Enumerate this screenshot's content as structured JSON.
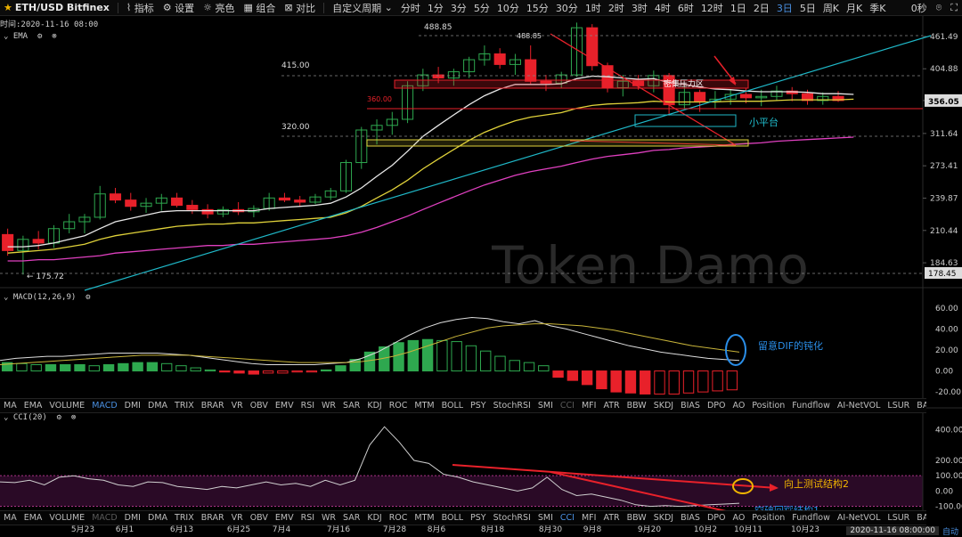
{
  "toolbar": {
    "symbol": "ETH/USD Bitfinex",
    "tools": [
      "指标",
      "设置",
      "亮色",
      "组合",
      "对比"
    ],
    "period_menu": "自定义周期",
    "periods": [
      "分时",
      "1分",
      "3分",
      "5分",
      "10分",
      "15分",
      "30分",
      "1时",
      "2时",
      "3时",
      "4时",
      "6时",
      "12时",
      "1日",
      "2日",
      "3日",
      "5日",
      "周K",
      "月K",
      "季K"
    ],
    "active_period": "3日",
    "countdown": "0秒"
  },
  "time_label": "时间:2020-11-16 08:00",
  "main": {
    "indicator_label": "EMA",
    "y_ticks": [
      "461.49",
      "404.88",
      "356.05",
      "311.64",
      "273.41",
      "239.87",
      "210.44",
      "184.63",
      "178.45"
    ],
    "current_price": "356.05",
    "watermark": "Token Damo",
    "annotations": {
      "high_label": "488.85",
      "high_label2": "488.85",
      "level_415": "415.00",
      "level_360": "360.00",
      "level_320": "320.00",
      "low_label": "← 175.72",
      "pressure_zone": "密集压力区",
      "small_platform": "小平台"
    }
  },
  "macd": {
    "label": "MACD(12,26,9)",
    "y_ticks": [
      "60.00",
      "40.00",
      "20.00",
      "0.00",
      "-20.00"
    ],
    "note": "留意DIF的钝化"
  },
  "indicators": [
    "MA",
    "EMA",
    "VOLUME",
    "MACD",
    "DMI",
    "DMA",
    "TRIX",
    "BRAR",
    "VR",
    "OBV",
    "EMV",
    "RSI",
    "WR",
    "SAR",
    "KDJ",
    "ROC",
    "MTM",
    "BOLL",
    "PSY",
    "StochRSI",
    "SMI",
    "CCI",
    "MFI",
    "ATR",
    "BBW",
    "SKDJ",
    "BIAS",
    "DPO",
    "AO",
    "Position",
    "Fundflow",
    "AI-NetVOL",
    "LSUR",
    "BASIS",
    "TVolume",
    "FTBS",
    "TTSI",
    "TTMU",
    "AI-BSI"
  ],
  "indicators_active_row1": "MACD",
  "indicators_active_row2": "CCI",
  "cci": {
    "label": "CCI(20)",
    "y_ticks": [
      "400.00",
      "200.00",
      "100.00",
      "0.00",
      "-100.00"
    ],
    "note_up": "向上测试结构2",
    "note_down": "空破回踩结构1"
  },
  "x_ticks": [
    "5月23",
    "6月1",
    "6月13",
    "6月25",
    "7月4",
    "7月16",
    "7月28",
    "8月6",
    "8月18",
    "8月30",
    "9月8",
    "9月20",
    "10月2",
    "10月11",
    "10月23"
  ],
  "status": {
    "datetime": "2020-11-16 08:00:00",
    "mode": "自动"
  },
  "colors": {
    "up": "#e8212a",
    "down": "#2ea84f",
    "ema_fast": "#e8e8e8",
    "ema_mid": "#e0d23a",
    "ema_slow": "#e040c0",
    "trend": "#1fb8c8",
    "accent": "#4a90e2",
    "cci_zone": "#2a0a26"
  },
  "chart_data": [
    {
      "type": "candlestick",
      "title": "ETH/USD Bitfinex 3日",
      "x": [
        "5月17",
        "5月20",
        "5月23",
        "5月26",
        "5月29",
        "6月1",
        "6月4",
        "6月7",
        "6月10",
        "6月13",
        "6月16",
        "6月19",
        "6月22",
        "6月25",
        "6月28",
        "7月1",
        "7月4",
        "7月7",
        "7月10",
        "7月13",
        "7月16",
        "7月19",
        "7月22",
        "7月25",
        "7月28",
        "7月31",
        "8月3",
        "8月6",
        "8月9",
        "8月12",
        "8月15",
        "8月18",
        "8月21",
        "8月24",
        "8月27",
        "8月30",
        "9月2",
        "9月5",
        "9月8",
        "9月11",
        "9月14",
        "9月17",
        "9月20",
        "9月23",
        "9月26",
        "9月29",
        "10月2",
        "10月5",
        "10月8",
        "10月11",
        "10月14",
        "10月17",
        "10月20",
        "10月23",
        "10月26",
        "10月29",
        "11月1",
        "11月4",
        "11月7",
        "11月10",
        "11月13",
        "11月16"
      ],
      "ohlc": [
        [
          207,
          212,
          190,
          194
        ],
        [
          194,
          206,
          176,
          203
        ],
        [
          203,
          210,
          195,
          200
        ],
        [
          200,
          215,
          196,
          212
        ],
        [
          212,
          225,
          208,
          218
        ],
        [
          218,
          225,
          208,
          222
        ],
        [
          222,
          252,
          220,
          244
        ],
        [
          244,
          250,
          235,
          238
        ],
        [
          238,
          245,
          228,
          232
        ],
        [
          232,
          240,
          226,
          235
        ],
        [
          235,
          244,
          228,
          240
        ],
        [
          240,
          245,
          231,
          233
        ],
        [
          233,
          238,
          225,
          229
        ],
        [
          229,
          234,
          221,
          225
        ],
        [
          225,
          232,
          222,
          229
        ],
        [
          229,
          236,
          224,
          227
        ],
        [
          227,
          233,
          222,
          230
        ],
        [
          230,
          245,
          228,
          240
        ],
        [
          240,
          245,
          236,
          238
        ],
        [
          238,
          242,
          232,
          236
        ],
        [
          236,
          244,
          234,
          241
        ],
        [
          241,
          250,
          238,
          247
        ],
        [
          247,
          280,
          245,
          277
        ],
        [
          277,
          320,
          270,
          316
        ],
        [
          316,
          330,
          298,
          322
        ],
        [
          322,
          340,
          310,
          330
        ],
        [
          330,
          385,
          325,
          378
        ],
        [
          378,
          405,
          370,
          395
        ],
        [
          395,
          408,
          382,
          390
        ],
        [
          390,
          405,
          378,
          400
        ],
        [
          400,
          425,
          390,
          420
        ],
        [
          420,
          445,
          410,
          430
        ],
        [
          430,
          440,
          405,
          412
        ],
        [
          412,
          430,
          395,
          420
        ],
        [
          420,
          445,
          380,
          385
        ],
        [
          385,
          395,
          370,
          382
        ],
        [
          382,
          400,
          375,
          395
        ],
        [
          395,
          488,
          392,
          478
        ],
        [
          478,
          485,
          402,
          410
        ],
        [
          410,
          415,
          368,
          375
        ],
        [
          375,
          395,
          362,
          385
        ],
        [
          385,
          395,
          372,
          378
        ],
        [
          378,
          402,
          368,
          394
        ],
        [
          394,
          398,
          335,
          350
        ],
        [
          350,
          378,
          345,
          368
        ],
        [
          368,
          372,
          340,
          355
        ],
        [
          355,
          370,
          345,
          358
        ],
        [
          358,
          372,
          350,
          365
        ],
        [
          365,
          374,
          352,
          360
        ],
        [
          360,
          372,
          348,
          362
        ],
        [
          362,
          378,
          356,
          370
        ],
        [
          370,
          376,
          355,
          366
        ],
        [
          366,
          372,
          350,
          356
        ],
        [
          356,
          368,
          350,
          362
        ],
        [
          362,
          370,
          354,
          356
        ]
      ],
      "ylim": [
        170,
        480
      ],
      "y_scale": "log",
      "ema_fast": [
        197,
        197,
        198,
        200,
        203,
        206,
        212,
        218,
        221,
        224,
        227,
        228,
        228,
        228,
        228,
        228,
        228,
        230,
        231,
        232,
        233,
        235,
        241,
        250,
        262,
        274,
        290,
        308,
        322,
        336,
        350,
        363,
        373,
        380,
        380,
        380,
        381,
        389,
        393,
        392,
        390,
        388,
        389,
        383,
        380,
        376,
        373,
        372,
        370,
        369,
        369,
        369,
        368,
        366,
        366,
        365
      ],
      "ema_mid": [
        192,
        193,
        194,
        195,
        197,
        199,
        203,
        206,
        208,
        210,
        212,
        214,
        215,
        216,
        216,
        217,
        217,
        218,
        219,
        220,
        221,
        222,
        226,
        232,
        240,
        248,
        258,
        270,
        281,
        292,
        303,
        313,
        321,
        328,
        333,
        336,
        339,
        345,
        349,
        351,
        352,
        353,
        355,
        354,
        354,
        354,
        354,
        355,
        355,
        355,
        356,
        357,
        357,
        357,
        357,
        358
      ],
      "ema_slow": [
        186,
        186,
        187,
        187,
        188,
        189,
        190,
        192,
        193,
        194,
        195,
        196,
        197,
        198,
        198,
        199,
        199,
        200,
        201,
        202,
        203,
        204,
        206,
        209,
        213,
        218,
        223,
        229,
        235,
        241,
        247,
        253,
        258,
        263,
        267,
        270,
        273,
        277,
        281,
        284,
        286,
        288,
        291,
        292,
        294,
        295,
        296,
        298,
        299,
        300,
        302,
        303,
        304,
        305,
        306,
        307
      ]
    },
    {
      "type": "bar",
      "title": "MACD(12,26,9)",
      "ylim": [
        -25,
        65
      ],
      "hist": [
        8,
        7,
        6,
        6,
        6,
        6,
        5,
        6,
        7,
        8,
        8,
        7,
        5,
        3,
        1,
        -1,
        -2,
        -3,
        -2,
        -2,
        -1,
        -1,
        1,
        5,
        11,
        18,
        23,
        27,
        29,
        30,
        29,
        28,
        24,
        19,
        14,
        10,
        8,
        5,
        -6,
        -9,
        -13,
        -17,
        -20,
        -21,
        -22,
        -22,
        -22,
        -21,
        -20,
        -19,
        -18
      ],
      "dif": [
        10,
        12,
        13,
        14,
        14,
        15,
        16,
        17,
        17,
        17,
        17,
        16,
        15,
        13,
        11,
        9,
        7,
        6,
        6,
        6,
        6,
        7,
        8,
        12,
        18,
        26,
        34,
        41,
        46,
        49,
        51,
        50,
        47,
        45,
        48,
        43,
        40,
        36,
        32,
        28,
        24,
        21,
        18,
        16,
        14,
        12,
        11,
        10
      ],
      "dea": [
        6,
        7,
        8,
        9,
        10,
        11,
        12,
        13,
        14,
        15,
        15,
        15,
        15,
        14,
        13,
        12,
        11,
        10,
        9,
        8,
        8,
        8,
        8,
        9,
        11,
        14,
        18,
        23,
        28,
        33,
        37,
        41,
        43,
        44,
        45,
        45,
        44,
        43,
        41,
        39,
        36,
        33,
        30,
        27,
        24,
        22,
        20,
        18
      ]
    },
    {
      "type": "line",
      "title": "CCI(20)",
      "ylim": [
        -120,
        450
      ],
      "values": [
        60,
        55,
        70,
        40,
        90,
        100,
        80,
        70,
        40,
        30,
        60,
        55,
        30,
        20,
        10,
        30,
        20,
        40,
        60,
        40,
        50,
        30,
        70,
        40,
        70,
        300,
        420,
        320,
        200,
        180,
        110,
        90,
        60,
        40,
        20,
        0,
        20,
        90,
        10,
        -30,
        -20,
        -40,
        -60,
        -90,
        -100,
        -95,
        -100,
        -95,
        -90,
        -85,
        -80
      ]
    }
  ]
}
